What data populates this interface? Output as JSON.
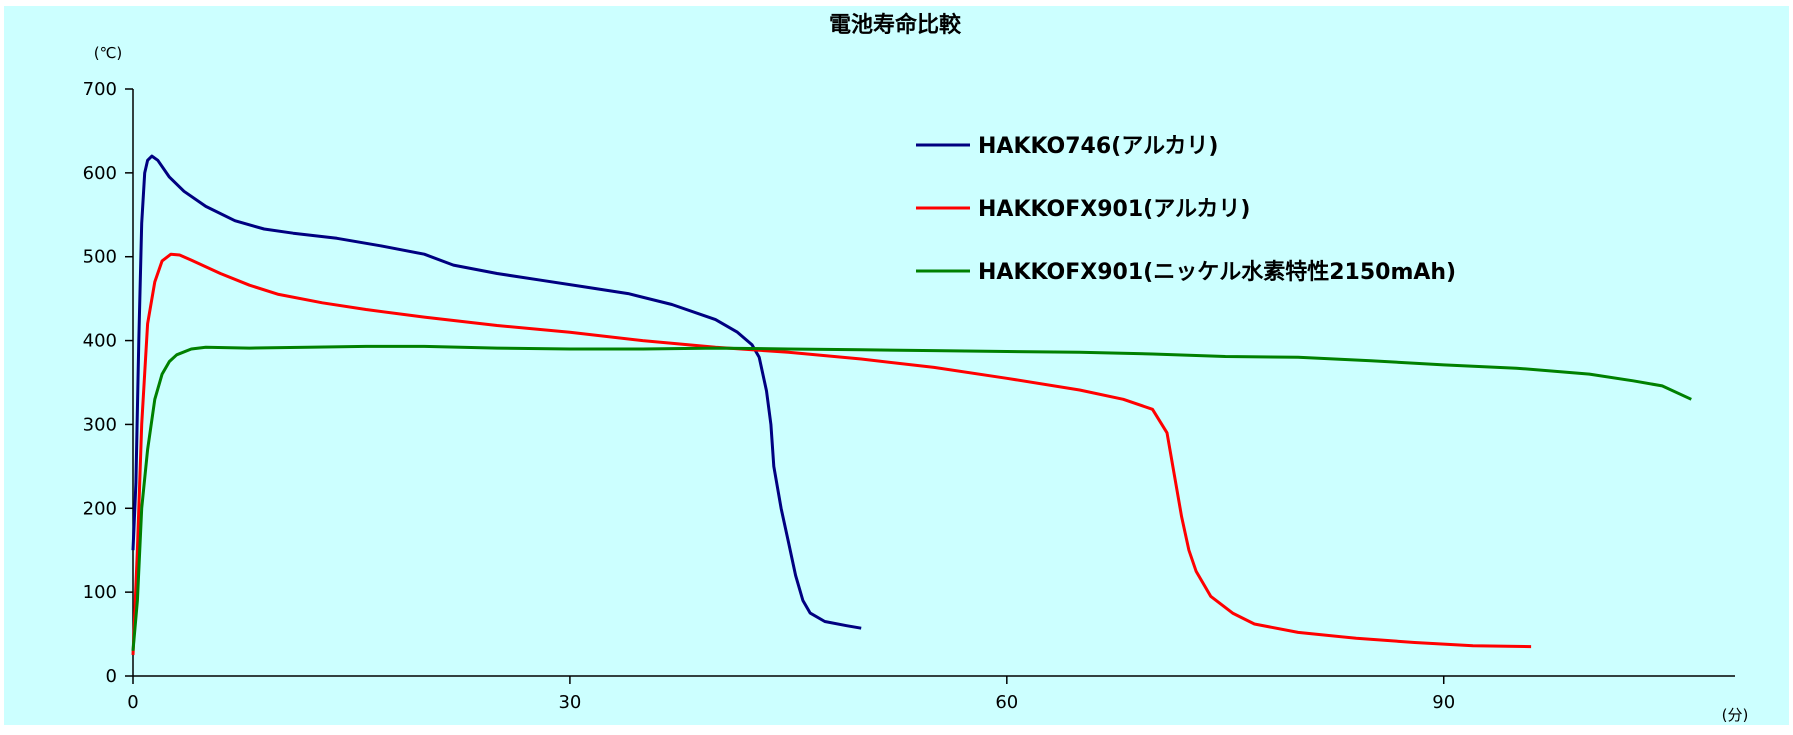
{
  "chart_data": {
    "type": "line",
    "title": "電池寿命比較",
    "ylabel": "(℃)",
    "xlabel": "(分)",
    "xlim": [
      0,
      110
    ],
    "ylim": [
      0,
      700
    ],
    "x_ticks": [
      0,
      30,
      60,
      90
    ],
    "y_ticks": [
      0,
      100,
      200,
      300,
      400,
      500,
      600,
      700
    ],
    "grid": false,
    "legend_position": "top-right",
    "background": "#ccffff",
    "series": [
      {
        "name": "HAKKO746(アルカリ)",
        "color": "#000080",
        "points": [
          [
            0,
            150
          ],
          [
            0.2,
            230
          ],
          [
            0.4,
            400
          ],
          [
            0.6,
            540
          ],
          [
            0.8,
            600
          ],
          [
            1,
            615
          ],
          [
            1.3,
            620
          ],
          [
            1.7,
            615
          ],
          [
            2.5,
            595
          ],
          [
            3.5,
            578
          ],
          [
            5,
            560
          ],
          [
            7,
            543
          ],
          [
            9,
            533
          ],
          [
            11,
            528
          ],
          [
            14,
            522
          ],
          [
            17,
            513
          ],
          [
            20,
            503
          ],
          [
            22,
            490
          ],
          [
            25,
            480
          ],
          [
            28,
            472
          ],
          [
            31,
            464
          ],
          [
            34,
            456
          ],
          [
            37,
            443
          ],
          [
            40,
            425
          ],
          [
            41.5,
            410
          ],
          [
            42.5,
            395
          ],
          [
            43,
            380
          ],
          [
            43.5,
            340
          ],
          [
            43.8,
            300
          ],
          [
            44,
            250
          ],
          [
            44.5,
            200
          ],
          [
            45,
            160
          ],
          [
            45.5,
            120
          ],
          [
            46,
            90
          ],
          [
            46.5,
            75
          ],
          [
            47.5,
            65
          ],
          [
            49,
            60
          ],
          [
            50,
            57
          ]
        ]
      },
      {
        "name": "HAKKOFX901(アルカリ)",
        "color": "#ff0000",
        "points": [
          [
            0,
            25
          ],
          [
            0.3,
            150
          ],
          [
            0.6,
            300
          ],
          [
            1,
            420
          ],
          [
            1.5,
            470
          ],
          [
            2,
            495
          ],
          [
            2.6,
            503
          ],
          [
            3.2,
            502
          ],
          [
            4,
            496
          ],
          [
            6,
            480
          ],
          [
            8,
            466
          ],
          [
            10,
            455
          ],
          [
            13,
            445
          ],
          [
            16,
            437
          ],
          [
            20,
            428
          ],
          [
            25,
            418
          ],
          [
            30,
            410
          ],
          [
            35,
            400
          ],
          [
            40,
            392
          ],
          [
            45,
            386
          ],
          [
            50,
            378
          ],
          [
            55,
            368
          ],
          [
            60,
            355
          ],
          [
            65,
            341
          ],
          [
            68,
            330
          ],
          [
            70,
            318
          ],
          [
            71,
            290
          ],
          [
            71.5,
            240
          ],
          [
            72,
            190
          ],
          [
            72.5,
            150
          ],
          [
            73,
            125
          ],
          [
            74,
            95
          ],
          [
            75.5,
            75
          ],
          [
            77,
            62
          ],
          [
            80,
            52
          ],
          [
            84,
            45
          ],
          [
            88,
            40
          ],
          [
            92,
            36
          ],
          [
            96,
            35
          ]
        ]
      },
      {
        "name": "HAKKOFX901(ニッケル水素特性2150mAh)",
        "color": "#008000",
        "points": [
          [
            0,
            30
          ],
          [
            0.3,
            90
          ],
          [
            0.6,
            200
          ],
          [
            1,
            270
          ],
          [
            1.5,
            330
          ],
          [
            2,
            360
          ],
          [
            2.5,
            375
          ],
          [
            3,
            383
          ],
          [
            4,
            390
          ],
          [
            5,
            392
          ],
          [
            8,
            391
          ],
          [
            12,
            392
          ],
          [
            16,
            393
          ],
          [
            20,
            393
          ],
          [
            25,
            391
          ],
          [
            30,
            390
          ],
          [
            35,
            390
          ],
          [
            40,
            391
          ],
          [
            45,
            390
          ],
          [
            50,
            389
          ],
          [
            55,
            388
          ],
          [
            60,
            387
          ],
          [
            65,
            386
          ],
          [
            70,
            384
          ],
          [
            75,
            381
          ],
          [
            80,
            380
          ],
          [
            85,
            376
          ],
          [
            90,
            371
          ],
          [
            95,
            367
          ],
          [
            100,
            360
          ],
          [
            103,
            352
          ],
          [
            105,
            346
          ],
          [
            107,
            330
          ]
        ]
      }
    ]
  }
}
